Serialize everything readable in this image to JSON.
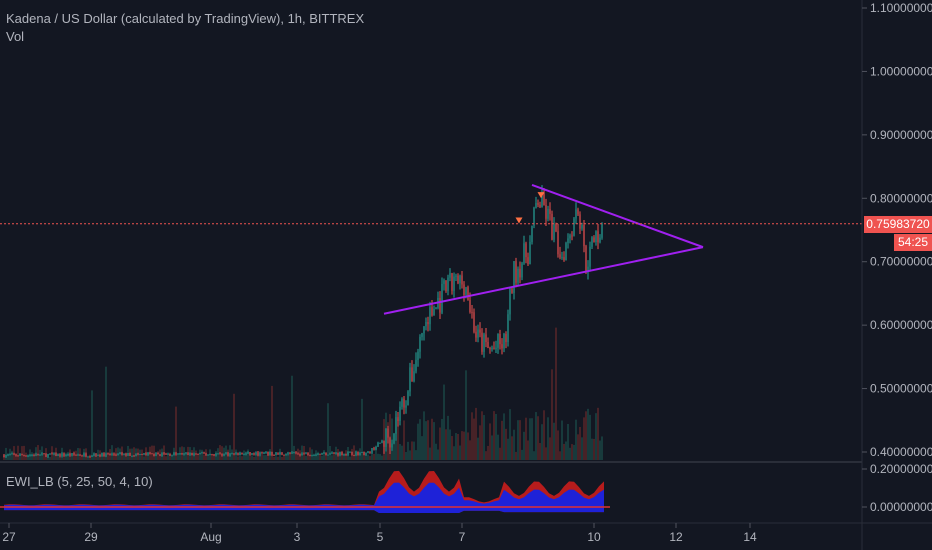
{
  "header": {
    "title": "Kadena / US Dollar (calculated by TradingView), 1h, BITTREX",
    "volume_label": "Vol"
  },
  "indicator": {
    "label": "EWI_LB (5, 25, 50, 4, 10)",
    "axis_labels": [
      "0.20000000",
      "0.00000000"
    ]
  },
  "price_axis": {
    "labels": [
      "1.10000000",
      "1.00000000",
      "0.90000000",
      "0.80000000",
      "0.70000000",
      "0.60000000",
      "0.50000000",
      "0.40000000"
    ]
  },
  "last_price": {
    "value": "0.75983720",
    "countdown": "54:25"
  },
  "time_axis": {
    "labels": [
      "27",
      "29",
      "Aug",
      "3",
      "5",
      "7",
      "10",
      "12",
      "14"
    ]
  },
  "colors": {
    "background": "#131722",
    "up": "#26a69a",
    "down": "#ef5350",
    "trendline": "#a020f0",
    "ewi_red": "#b71c1c",
    "ewi_blue": "#1e22d8",
    "text": "#b2b5be"
  },
  "chart_data": {
    "type": "candlestick",
    "interval": "1h",
    "symbol": "Kadena / US Dollar",
    "exchange": "BITTREX",
    "y_axis_range": [
      0.39,
      1.1
    ],
    "y_ticks": [
      0.4,
      0.5,
      0.6,
      0.7,
      0.8,
      0.9,
      1.0,
      1.1
    ],
    "last_price": 0.7598372,
    "trend_path_points": [
      {
        "t": 0.0,
        "p": 0.395
      },
      {
        "t": 0.45,
        "p": 0.398
      },
      {
        "t": 0.48,
        "p": 0.43
      },
      {
        "t": 0.5,
        "p": 0.5
      },
      {
        "t": 0.52,
        "p": 0.6
      },
      {
        "t": 0.55,
        "p": 0.66
      },
      {
        "t": 0.57,
        "p": 0.67
      },
      {
        "t": 0.585,
        "p": 0.58
      },
      {
        "t": 0.6,
        "p": 0.56
      },
      {
        "t": 0.62,
        "p": 0.57
      },
      {
        "t": 0.63,
        "p": 0.68
      },
      {
        "t": 0.65,
        "p": 0.72
      },
      {
        "t": 0.66,
        "p": 0.8
      },
      {
        "t": 0.67,
        "p": 0.78
      },
      {
        "t": 0.69,
        "p": 0.71
      },
      {
        "t": 0.71,
        "p": 0.79
      },
      {
        "t": 0.72,
        "p": 0.7
      },
      {
        "t": 0.74,
        "p": 0.76
      }
    ],
    "trendlines": [
      {
        "from": {
          "label": "5",
          "p": 0.618
        },
        "to": {
          "label": "13",
          "p": 0.723
        }
      },
      {
        "from": {
          "label": "8",
          "p": 0.821
        },
        "to": {
          "label": "13",
          "p": 0.723
        }
      }
    ]
  }
}
